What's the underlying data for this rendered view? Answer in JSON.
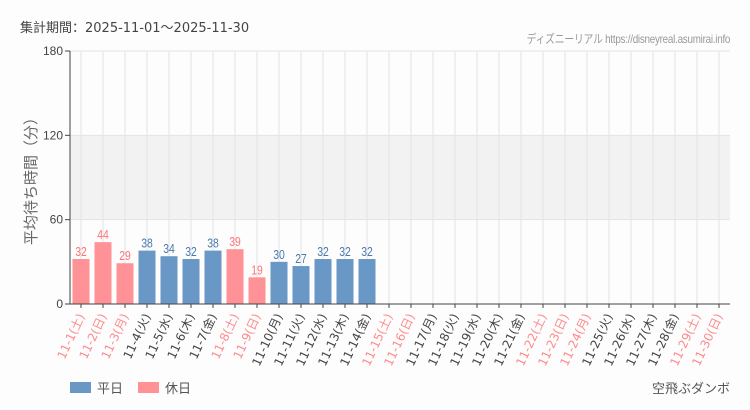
{
  "header": {
    "period": "集計期間：2025-11-01～2025-11-30",
    "credit": "ディズニーリアル https://disneyreal.asumirai.info"
  },
  "footer": {
    "attraction": "空飛ぶダンボ"
  },
  "colors": {
    "weekday": "#6a98c6",
    "holiday": "#ff9296",
    "weekday_label": "#4a7ab0",
    "holiday_label": "#ff7478",
    "weekday_tick": "#444444",
    "holiday_tick": "#ff8a8e",
    "band": "#f2f2f2",
    "grid": "#e4e4e4"
  },
  "chart_data": {
    "type": "bar",
    "title": "",
    "xlabel": "",
    "ylabel": "平均待ち時間（分）",
    "ylim": [
      0,
      180
    ],
    "yticks": [
      0,
      60,
      120,
      180
    ],
    "band": [
      60,
      120
    ],
    "grid": true,
    "legend": [
      {
        "name": "平日",
        "color": "#6a98c6"
      },
      {
        "name": "休日",
        "color": "#ff9296"
      }
    ],
    "legend_position": "bottom-left",
    "categories": [
      "11-1(土)",
      "11-2(日)",
      "11-3(月)",
      "11-4(火)",
      "11-5(水)",
      "11-6(木)",
      "11-7(金)",
      "11-8(土)",
      "11-9(日)",
      "11-10(月)",
      "11-11(火)",
      "11-12(水)",
      "11-13(木)",
      "11-14(金)",
      "11-15(土)",
      "11-16(日)",
      "11-17(月)",
      "11-18(火)",
      "11-19(水)",
      "11-20(木)",
      "11-21(金)",
      "11-22(土)",
      "11-23(日)",
      "11-24(月)",
      "11-25(火)",
      "11-26(水)",
      "11-27(木)",
      "11-28(金)",
      "11-29(土)",
      "11-30(日)"
    ],
    "holiday": [
      true,
      true,
      true,
      false,
      false,
      false,
      false,
      true,
      true,
      false,
      false,
      false,
      false,
      false,
      true,
      true,
      false,
      false,
      false,
      false,
      false,
      true,
      true,
      true,
      false,
      false,
      false,
      false,
      true,
      true
    ],
    "values": [
      32,
      44,
      29,
      38,
      34,
      32,
      38,
      39,
      19,
      30,
      27,
      32,
      32,
      32,
      null,
      null,
      null,
      null,
      null,
      null,
      null,
      null,
      null,
      null,
      null,
      null,
      null,
      null,
      null,
      null
    ]
  }
}
